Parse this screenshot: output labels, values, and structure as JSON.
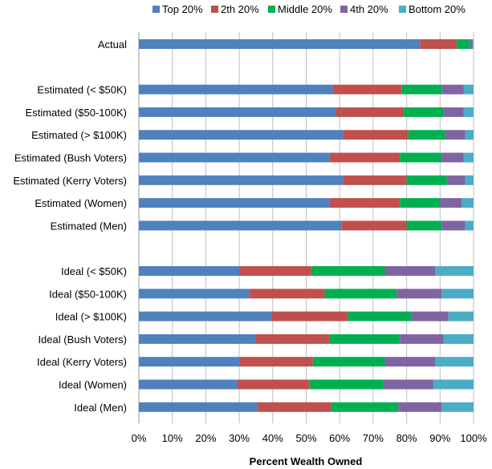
{
  "chart_data": {
    "type": "bar",
    "orientation": "horizontal",
    "stacked": true,
    "title": "",
    "xlabel": "Percent Wealth Owned",
    "ylabel": "",
    "xlim": [
      0,
      100
    ],
    "x_ticks": [
      "0%",
      "10%",
      "20%",
      "30%",
      "40%",
      "50%",
      "60%",
      "70%",
      "80%",
      "90%",
      "100%"
    ],
    "grid": true,
    "legend_position": "top",
    "categories": [
      "Actual",
      "Estimated (< $50K)",
      "Estimated ($50-100K)",
      "Estimated (> $100K)",
      "Estimated (Bush Voters)",
      "Estimated (Kerry Voters)",
      "Estimated (Women)",
      "Estimated (Men)",
      "Ideal (< $50K)",
      "Ideal ($50-100K)",
      "Ideal (> $100K)",
      "Ideal (Bush Voters)",
      "Ideal (Kerry Voters)",
      "Ideal (Women)",
      "Ideal (Men)"
    ],
    "groups": [
      1,
      7,
      7
    ],
    "series": [
      {
        "name": "Top 20%",
        "color": "#4f81bd",
        "values": [
          84,
          58,
          59,
          61,
          57,
          61,
          57,
          60.5,
          30,
          33,
          39.5,
          35,
          30,
          29.5,
          35.5
        ]
      },
      {
        "name": "2th 20%",
        "color": "#c0504d",
        "values": [
          11,
          20.5,
          20,
          19.5,
          21,
          19,
          21,
          19.5,
          21.5,
          22.5,
          23,
          22,
          22,
          21.5,
          22
        ]
      },
      {
        "name": "Middle 20%",
        "color": "#00b050",
        "values": [
          4,
          12,
          12,
          11,
          12.5,
          12,
          12,
          10.5,
          22,
          21.5,
          19,
          21,
          21.5,
          22,
          20
        ]
      },
      {
        "name": "4th 20%",
        "color": "#8064a2",
        "values": [
          0.7,
          6.5,
          6,
          6,
          6.5,
          5.5,
          6.5,
          7,
          15,
          13.5,
          11,
          13,
          15,
          15,
          13
        ]
      },
      {
        "name": "Bottom 20%",
        "color": "#4bacc6",
        "values": [
          0.3,
          3,
          3,
          2.5,
          3,
          2.5,
          3.5,
          2.5,
          11.5,
          9.5,
          7.5,
          9,
          11.5,
          12,
          9.5
        ]
      }
    ]
  }
}
